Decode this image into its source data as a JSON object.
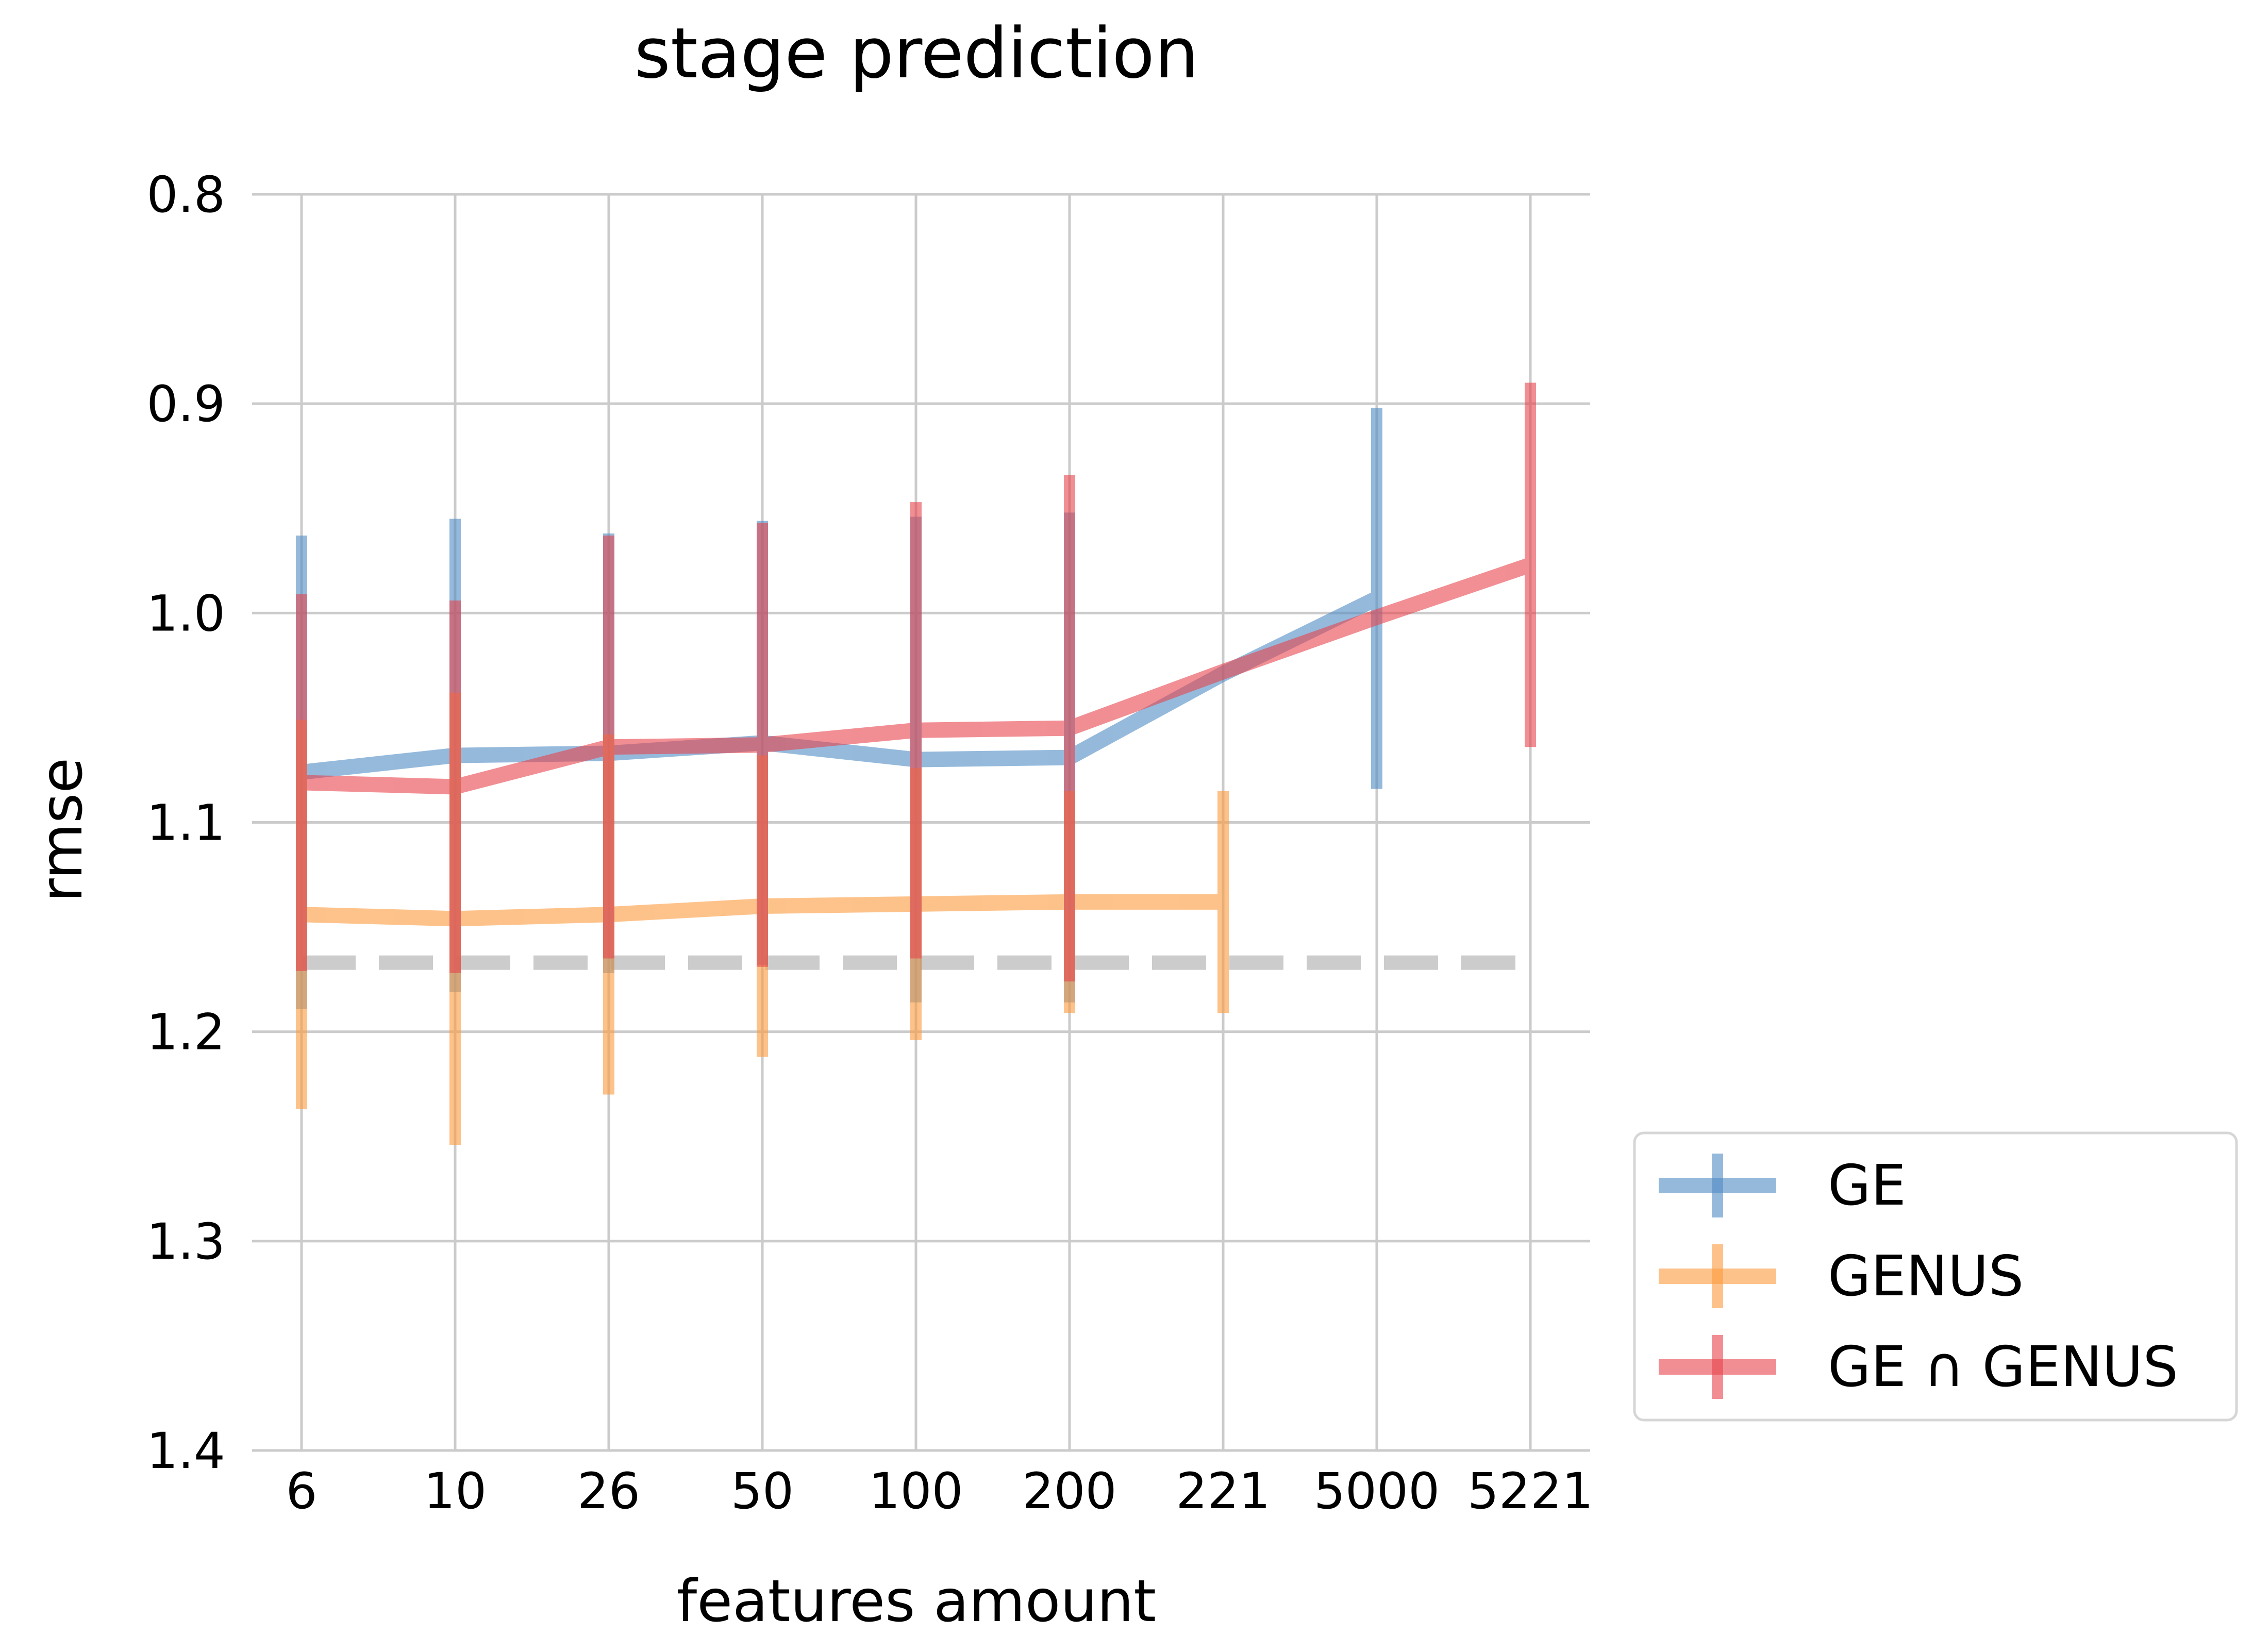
{
  "chart_data": {
    "type": "line",
    "title": "stage prediction",
    "xlabel": "features amount",
    "ylabel": "rmse",
    "categories": [
      "6",
      "10",
      "26",
      "50",
      "100",
      "200",
      "221",
      "5000",
      "5221"
    ],
    "y_ticks": [
      "0.8",
      "0.9",
      "1.0",
      "1.1",
      "1.2",
      "1.3",
      "1.4"
    ],
    "y_tick_values": [
      0.8,
      0.9,
      1.0,
      1.1,
      1.2,
      1.3,
      1.4
    ],
    "ylim": [
      0.8,
      1.4
    ],
    "y_inverted": true,
    "grid": true,
    "legend_position": "outside-lower-right",
    "baseline": 1.167,
    "baseline_color": "#cccccc",
    "series": [
      {
        "name": "GE",
        "color": "#4f8cc4",
        "values": [
          1.076,
          1.068,
          1.067,
          1.062,
          1.07,
          1.069,
          null,
          0.993,
          null
        ],
        "errors": [
          0.113,
          0.113,
          0.105,
          0.106,
          0.116,
          0.117,
          null,
          0.091,
          null
        ],
        "line_x": [
          "6",
          "10",
          "26",
          "50",
          "100",
          "200",
          "221",
          "5000"
        ],
        "line_y": [
          1.076,
          1.068,
          1.067,
          1.062,
          1.07,
          1.069,
          1.029,
          0.993
        ]
      },
      {
        "name": "GENUS",
        "color": "#fd9b3d",
        "values": [
          1.144,
          1.146,
          1.144,
          1.14,
          1.139,
          1.138,
          1.138,
          null,
          null
        ],
        "errors": [
          0.093,
          0.108,
          0.086,
          0.072,
          0.065,
          0.053,
          0.053,
          null,
          null
        ]
      },
      {
        "name": "GE ∩ GENUS",
        "color": "#e8444d",
        "values": [
          1.081,
          1.083,
          1.064,
          1.063,
          1.056,
          1.055,
          null,
          null,
          0.977
        ],
        "errors": [
          0.09,
          0.089,
          0.101,
          0.106,
          0.109,
          0.121,
          null,
          null,
          0.087
        ],
        "line_x": [
          "6",
          "10",
          "26",
          "50",
          "100",
          "200",
          "221",
          "5000",
          "5221"
        ],
        "line_y": [
          1.081,
          1.083,
          1.064,
          1.063,
          1.056,
          1.055,
          1.028,
          1.002,
          0.977
        ]
      }
    ]
  }
}
